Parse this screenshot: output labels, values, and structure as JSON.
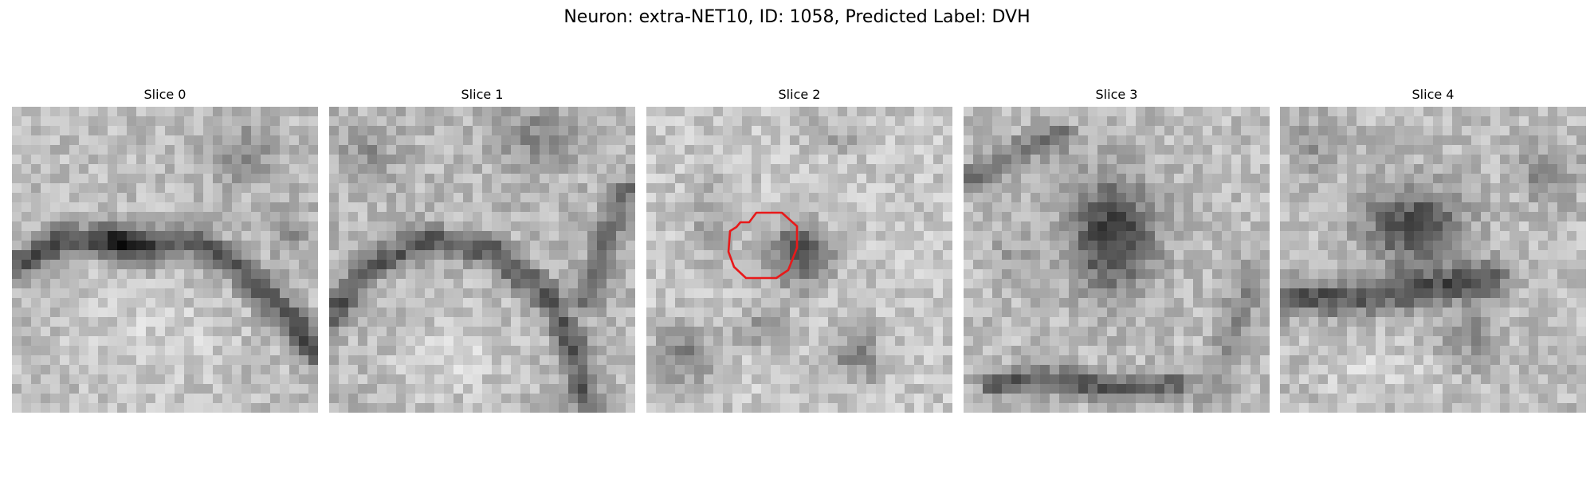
{
  "figure": {
    "title": "Neuron: extra-NET10, ID: 1058, Predicted Label: DVH"
  },
  "colors": {
    "background": "#ffffff",
    "roi_outline": "#e8191a",
    "colormap": "gray"
  },
  "panels": [
    {
      "title": "Slice 0",
      "has_roi": false
    },
    {
      "title": "Slice 1",
      "has_roi": false
    },
    {
      "title": "Slice 2",
      "has_roi": true
    },
    {
      "title": "Slice 3",
      "has_roi": false
    },
    {
      "title": "Slice 4",
      "has_roi": false
    }
  ]
}
